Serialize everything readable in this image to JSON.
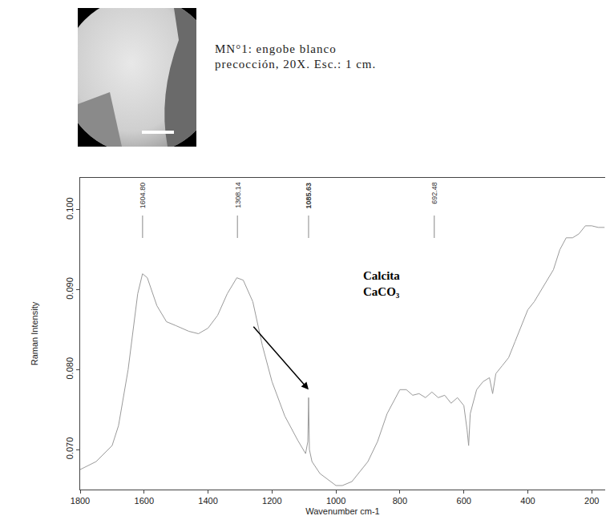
{
  "chart_data": {
    "type": "line",
    "caption": [
      "MN°1: engobe blanco",
      "precocción, 20X. Esc.: 1 cm."
    ],
    "x_label": "Wavenumber cm-1",
    "y_label": "Raman Intensity",
    "color": "#9a9a9a",
    "grid": false,
    "xlim": [
      1800,
      158
    ],
    "xticks": [
      1800,
      1600,
      1400,
      1200,
      1000,
      800,
      600,
      400,
      200
    ],
    "ylim": [
      0.065,
      0.104
    ],
    "yticks": [
      {
        "value": 0.07,
        "label": "0.070"
      },
      {
        "value": 0.08,
        "label": "0.080"
      },
      {
        "value": 0.09,
        "label": "0.090"
      },
      {
        "value": 0.1,
        "label": "0.100"
      }
    ],
    "peaks": [
      {
        "value": 1604.8,
        "label": "1604.80"
      },
      {
        "value": 1308.14,
        "label": "1308.14"
      },
      {
        "value": 1085.63,
        "label": "1085.63"
      },
      {
        "value": 692.48,
        "label": "692.48"
      }
    ],
    "annotations": [
      {
        "text": [
          "Calcita",
          "CaCO₃"
        ],
        "x": 1085.63,
        "y": 0.0775
      }
    ],
    "x": [
      1800,
      1750,
      1700,
      1680,
      1650,
      1620,
      1605,
      1590,
      1560,
      1530,
      1500,
      1460,
      1430,
      1400,
      1370,
      1340,
      1310,
      1290,
      1260,
      1230,
      1200,
      1160,
      1120,
      1095,
      1088,
      1085.6,
      1083,
      1075,
      1050,
      1000,
      980,
      950,
      900,
      870,
      840,
      800,
      780,
      760,
      740,
      720,
      700,
      680,
      660,
      640,
      620,
      600,
      590,
      585,
      580,
      560,
      540,
      520,
      510,
      500,
      480,
      460,
      440,
      420,
      400,
      380,
      350,
      320,
      300,
      280,
      260,
      240,
      220,
      200,
      180,
      160
    ],
    "values": [
      0.0675,
      0.0685,
      0.0705,
      0.073,
      0.08,
      0.0895,
      0.092,
      0.0915,
      0.088,
      0.086,
      0.0855,
      0.0848,
      0.0845,
      0.0852,
      0.0868,
      0.0895,
      0.0915,
      0.0912,
      0.0885,
      0.083,
      0.0785,
      0.0742,
      0.0712,
      0.0695,
      0.071,
      0.0765,
      0.07,
      0.0685,
      0.067,
      0.0655,
      0.0655,
      0.066,
      0.0685,
      0.071,
      0.0745,
      0.0775,
      0.0775,
      0.0768,
      0.077,
      0.0765,
      0.0772,
      0.0765,
      0.0768,
      0.0758,
      0.0765,
      0.0755,
      0.0725,
      0.0705,
      0.0745,
      0.0775,
      0.0785,
      0.079,
      0.077,
      0.0795,
      0.0805,
      0.0815,
      0.0835,
      0.0855,
      0.0875,
      0.0885,
      0.0905,
      0.0925,
      0.095,
      0.0965,
      0.0965,
      0.097,
      0.098,
      0.098,
      0.0978,
      0.0978
    ]
  }
}
